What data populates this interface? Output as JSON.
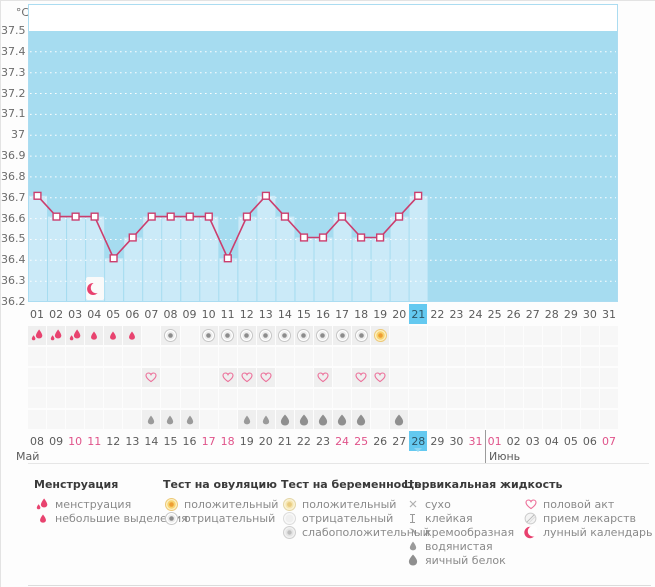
{
  "chart_data": {
    "type": "line",
    "title": "",
    "unit": "°C",
    "y_ticks": [
      "37.5",
      "37.4",
      "37.3",
      "37.2",
      "37.1",
      "37",
      "36.9",
      "36.8",
      "36.7",
      "36.6",
      "36.5",
      "36.4",
      "36.3",
      "36.2"
    ],
    "ylim": [
      36.2,
      37.5
    ],
    "total_day_columns": 31,
    "x_days": [
      1,
      2,
      3,
      4,
      5,
      6,
      7,
      8,
      9,
      10,
      11,
      12,
      13,
      14,
      15,
      16,
      17,
      18,
      19,
      20,
      21
    ],
    "series": [
      {
        "name": "базальная температура",
        "values": [
          36.7,
          36.6,
          36.6,
          36.6,
          36.4,
          36.5,
          36.6,
          36.6,
          36.6,
          36.6,
          36.4,
          36.6,
          36.7,
          36.6,
          36.5,
          36.5,
          36.6,
          36.5,
          36.5,
          36.6,
          36.7
        ]
      }
    ],
    "temps": [
      36.7,
      36.6,
      36.6,
      36.6,
      36.4,
      36.5,
      36.6,
      36.6,
      36.6,
      36.6,
      36.4,
      36.6,
      36.7,
      36.6,
      36.5,
      36.5,
      36.6,
      36.5,
      36.5,
      36.6,
      36.7
    ],
    "moon_marker_day": 4,
    "grid": "dotted-white",
    "legend_position": "bottom",
    "colors": {
      "plot_bg": "#a6dcf0",
      "column_fill": "#cbeaf8",
      "line": "#cb3e6e",
      "highlight": "#64c9f0",
      "menses": "#e8436f",
      "weekend_text": "#e0538a"
    }
  },
  "calendar": {
    "cycle_days": [
      "01",
      "02",
      "03",
      "04",
      "05",
      "06",
      "07",
      "08",
      "09",
      "10",
      "11",
      "12",
      "13",
      "14",
      "15",
      "16",
      "17",
      "18",
      "19",
      "20",
      "21",
      "22",
      "23",
      "24",
      "25",
      "26",
      "27",
      "28",
      "29",
      "30",
      "31"
    ],
    "cycle_highlight_index": 20,
    "dates": [
      {
        "label": "08",
        "weekend": false
      },
      {
        "label": "09",
        "weekend": false
      },
      {
        "label": "10",
        "weekend": true
      },
      {
        "label": "11",
        "weekend": true
      },
      {
        "label": "12",
        "weekend": false
      },
      {
        "label": "13",
        "weekend": false
      },
      {
        "label": "14",
        "weekend": false
      },
      {
        "label": "15",
        "weekend": false
      },
      {
        "label": "16",
        "weekend": false
      },
      {
        "label": "17",
        "weekend": true
      },
      {
        "label": "18",
        "weekend": true
      },
      {
        "label": "19",
        "weekend": false
      },
      {
        "label": "20",
        "weekend": false
      },
      {
        "label": "21",
        "weekend": false
      },
      {
        "label": "22",
        "weekend": false
      },
      {
        "label": "23",
        "weekend": false
      },
      {
        "label": "24",
        "weekend": true
      },
      {
        "label": "25",
        "weekend": true
      },
      {
        "label": "26",
        "weekend": false
      },
      {
        "label": "27",
        "weekend": false
      },
      {
        "label": "28",
        "weekend": false
      },
      {
        "label": "29",
        "weekend": false
      },
      {
        "label": "30",
        "weekend": false
      },
      {
        "label": "31",
        "weekend": true
      },
      {
        "label": "01",
        "weekend": true
      },
      {
        "label": "02",
        "weekend": false
      },
      {
        "label": "03",
        "weekend": false
      },
      {
        "label": "04",
        "weekend": false
      },
      {
        "label": "05",
        "weekend": false
      },
      {
        "label": "06",
        "weekend": false
      },
      {
        "label": "07",
        "weekend": true
      }
    ],
    "date_highlight_index": 20,
    "june_divider_index": 24,
    "months": [
      {
        "label": "Май"
      },
      {
        "label": "Июнь"
      }
    ]
  },
  "day_events": {
    "menses_heavy_days": [
      1,
      2,
      3
    ],
    "menses_light_days": [
      4,
      5,
      6
    ],
    "ovulation_negative_days": [
      8,
      10,
      11,
      12,
      13,
      14,
      15,
      16,
      17,
      18
    ],
    "ovulation_positive_days": [
      19
    ],
    "intercourse_days": [
      7,
      11,
      12,
      13,
      16,
      18,
      19
    ],
    "fluid_watery_days": [
      7,
      8,
      9,
      12,
      13
    ],
    "fluid_eggwhite_days": [
      14,
      15,
      16,
      17,
      18,
      20
    ]
  },
  "legend": {
    "columns": [
      {
        "header": "Менструация",
        "items": [
          {
            "icon": "menses-heavy",
            "label": "менструация"
          },
          {
            "icon": "menses-light",
            "label": "небольшие выделения"
          }
        ]
      },
      {
        "header": "Тест на овуляцию",
        "items": [
          {
            "icon": "ovu-pos",
            "label": "положительный"
          },
          {
            "icon": "ovu-neg",
            "label": "отрицательный"
          }
        ]
      },
      {
        "header": "Тест на беременность",
        "items": [
          {
            "icon": "preg-pos",
            "label": "положительный"
          },
          {
            "icon": "preg-neg",
            "label": "отрицательный"
          },
          {
            "icon": "preg-weak",
            "label": "слабоположительный"
          }
        ]
      },
      {
        "header": "Цервикальная жидкость",
        "items": [
          {
            "icon": "dry",
            "label": "сухо"
          },
          {
            "icon": "sticky",
            "label": "клейкая"
          },
          {
            "icon": "creamy",
            "label": "кремообразная"
          },
          {
            "icon": "fluid-watery",
            "label": "водянистая"
          },
          {
            "icon": "fluid-eggwhite",
            "label": "яичный белок"
          }
        ]
      },
      {
        "header": "",
        "items": [
          {
            "icon": "heart",
            "label": "половой акт"
          },
          {
            "icon": "pill",
            "label": "прием лекарств"
          },
          {
            "icon": "moon",
            "label": "лунный календарь"
          }
        ]
      }
    ]
  }
}
